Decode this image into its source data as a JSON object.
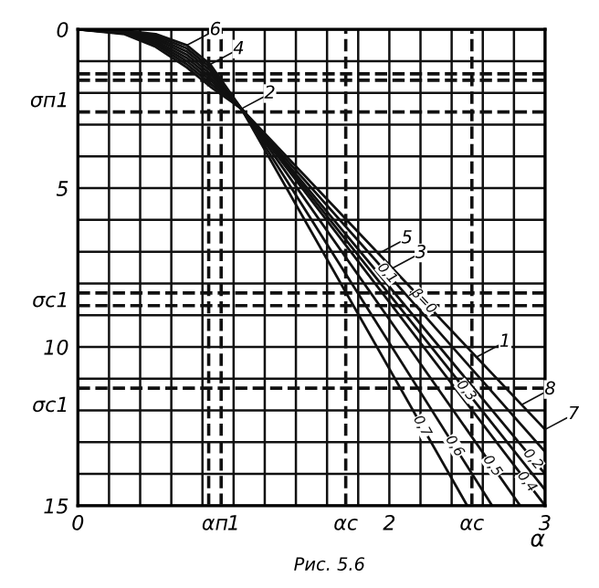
{
  "chart_data": {
    "type": "line",
    "xlabel": "α",
    "xlim": [
      0,
      3
    ],
    "ylim": [
      15,
      0
    ],
    "xticks": [
      0,
      {
        "value": 0.2,
        "label": null
      },
      {
        "value": 0.4,
        "label": null
      },
      {
        "value": 0.6,
        "label": null
      },
      {
        "value": 0.8,
        "label": null
      },
      {
        "value": 0.88,
        "label": "αп"
      },
      1,
      {
        "value": 1.2,
        "label": null
      },
      {
        "value": 1.4,
        "label": null
      },
      {
        "value": 1.6,
        "label": null
      },
      {
        "value": 1.8,
        "label": null
      },
      2,
      {
        "value": 2.2,
        "label": null
      },
      {
        "value": 2.4,
        "label": null
      },
      {
        "value": 2.6,
        "label": null
      },
      {
        "value": 2.8,
        "label": null
      },
      3
    ],
    "yticks": [
      0,
      {
        "value": 1,
        "label": null
      },
      {
        "value": 2,
        "label": null
      },
      {
        "value": 2.2,
        "label": "σп1"
      },
      {
        "value": 3,
        "label": null
      },
      {
        "value": 4,
        "label": null
      },
      5,
      {
        "value": 6,
        "label": null
      },
      {
        "value": 7,
        "label": null
      },
      {
        "value": 8,
        "label": null
      },
      {
        "value": 8.5,
        "label": "σc1"
      },
      {
        "value": 9,
        "label": null
      },
      10,
      {
        "value": 11,
        "label": null
      },
      {
        "value": 11.8,
        "label": "σc1"
      },
      {
        "value": 12,
        "label": null
      },
      {
        "value": 13,
        "label": null
      },
      {
        "value": 14,
        "label": null
      },
      15
    ],
    "grid": true,
    "marker": "none",
    "line_style": "solid",
    "series": [
      {
        "name": "β=0",
        "color": "#111111",
        "x": [
          0,
          0.3,
          0.5,
          0.7,
          0.85,
          1.05,
          3
        ],
        "values": [
          0,
          0.15,
          0.55,
          1.2,
          1.8,
          2.5,
          12.6
        ]
      },
      {
        "name": "0,1",
        "color": "#111111",
        "x": [
          0,
          0.3,
          0.5,
          0.7,
          0.85,
          1.05,
          3
        ],
        "values": [
          0,
          0.13,
          0.48,
          1.1,
          1.7,
          2.5,
          13.3
        ]
      },
      {
        "name": "0,2",
        "color": "#111111",
        "x": [
          0,
          0.3,
          0.5,
          0.7,
          0.85,
          1.05,
          3
        ],
        "values": [
          0,
          0.11,
          0.42,
          1.0,
          1.6,
          2.5,
          14
        ]
      },
      {
        "name": "0,3",
        "color": "#111111",
        "x": [
          0,
          0.3,
          0.5,
          0.7,
          0.85,
          1.05,
          3
        ],
        "values": [
          0,
          0.09,
          0.36,
          0.9,
          1.5,
          2.5,
          14.5
        ]
      },
      {
        "name": "0,4",
        "color": "#111111",
        "x": [
          0,
          0.3,
          0.5,
          0.7,
          0.85,
          1.05,
          3
        ],
        "values": [
          0,
          0.07,
          0.3,
          0.8,
          1.4,
          2.5,
          15
        ]
      },
      {
        "name": "0,5",
        "color": "#111111",
        "x": [
          0,
          0.3,
          0.5,
          0.7,
          0.85,
          1.05,
          2.84
        ],
        "values": [
          0,
          0.06,
          0.25,
          0.7,
          1.3,
          2.5,
          15
        ]
      },
      {
        "name": "0,6",
        "color": "#111111",
        "x": [
          0,
          0.3,
          0.5,
          0.7,
          0.85,
          1.05,
          2.66
        ],
        "values": [
          0,
          0.05,
          0.2,
          0.6,
          1.2,
          2.5,
          15
        ]
      },
      {
        "name": "0,7",
        "color": "#111111",
        "x": [
          0,
          0.3,
          0.5,
          0.7,
          0.85,
          1.05,
          2.5
        ],
        "values": [
          0,
          0.04,
          0.15,
          0.5,
          1.1,
          2.5,
          15
        ]
      }
    ],
    "ref_lines": [
      {
        "axis": "y",
        "value": 1.4,
        "line_style": "dashed",
        "color": "#111111"
      },
      {
        "axis": "y",
        "value": 1.6,
        "line_style": "dashed",
        "color": "#111111"
      },
      {
        "axis": "y",
        "value": 2.6,
        "line_style": "dashed",
        "color": "#111111"
      },
      {
        "axis": "y",
        "value": 8.3,
        "line_style": "dashed",
        "color": "#111111"
      },
      {
        "axis": "y",
        "value": 8.7,
        "line_style": "dashed",
        "color": "#111111"
      },
      {
        "axis": "y",
        "value": 11.3,
        "line_style": "dashed",
        "color": "#111111"
      },
      {
        "axis": "x",
        "value": 0.84,
        "line_style": "dashed",
        "color": "#111111"
      },
      {
        "axis": "x",
        "value": 0.92,
        "line_style": "dashed",
        "color": "#111111"
      },
      {
        "axis": "x",
        "value": 1.72,
        "label": "αc",
        "line_style": "dashed",
        "color": "#111111"
      },
      {
        "axis": "x",
        "value": 2.53,
        "label": "αc",
        "line_style": "dashed",
        "color": "#111111"
      }
    ],
    "annotations": [
      {
        "text": "6",
        "x": 0.7,
        "y": 0.5
      },
      {
        "text": "4",
        "x": 0.85,
        "y": 1.1
      },
      {
        "text": "2",
        "x": 1.05,
        "y": 2.5
      },
      {
        "text": "5",
        "x": 1.93,
        "y": 7.06
      },
      {
        "text": "3",
        "x": 2.02,
        "y": 7.52
      },
      {
        "text": "1",
        "x": 2.56,
        "y": 10.32
      },
      {
        "text": "8",
        "x": 2.85,
        "y": 11.82
      },
      {
        "text": "7",
        "x": 3.0,
        "y": 12.6
      },
      "Рис. 5.6"
    ]
  }
}
